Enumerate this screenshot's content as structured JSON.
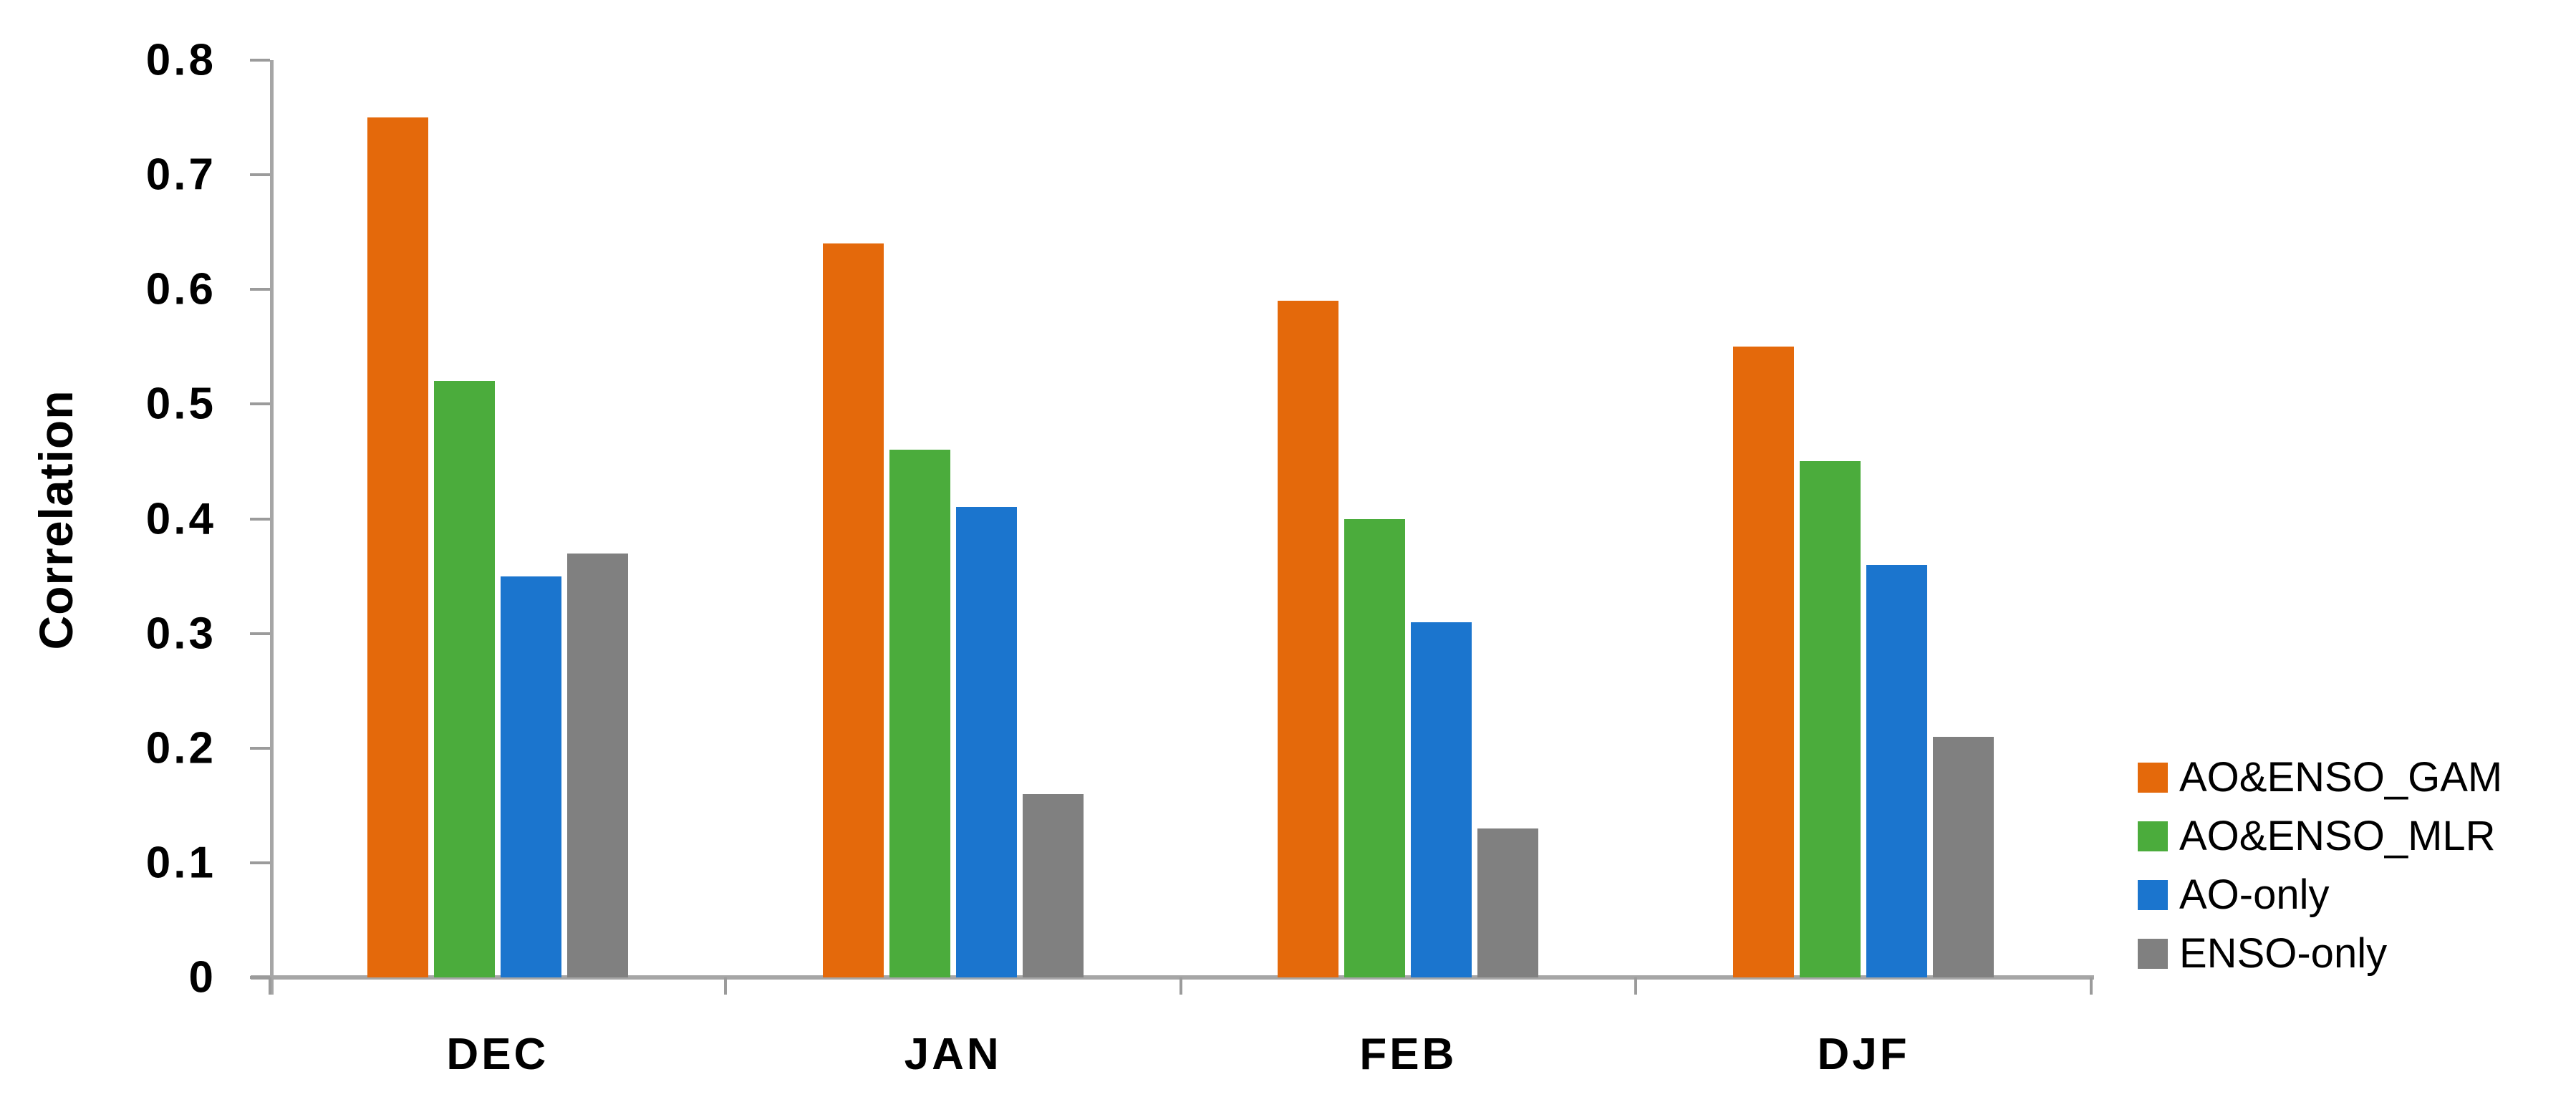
{
  "chart_data": {
    "type": "bar",
    "title": "",
    "xlabel": "",
    "ylabel": "Correlation",
    "categories": [
      "DEC",
      "JAN",
      "FEB",
      "DJF"
    ],
    "series": [
      {
        "name": "AO&ENSO_GAM",
        "color": "#e4690b",
        "values": [
          0.75,
          0.64,
          0.59,
          0.55
        ]
      },
      {
        "name": "AO&ENSO_MLR",
        "color": "#4bac3c",
        "values": [
          0.52,
          0.46,
          0.4,
          0.45
        ]
      },
      {
        "name": "AO-only",
        "color": "#1b75ce",
        "values": [
          0.35,
          0.41,
          0.31,
          0.36
        ]
      },
      {
        "name": "ENSO-only",
        "color": "#808080",
        "values": [
          0.37,
          0.16,
          0.13,
          0.21
        ]
      }
    ],
    "ylim": [
      0,
      0.8
    ],
    "yticks": [
      "0.8",
      "0.7",
      "0.6",
      "0.5",
      "0.4",
      "0.3",
      "0.2",
      "0.1",
      "0"
    ],
    "ytick_values": [
      0.8,
      0.7,
      0.6,
      0.5,
      0.4,
      0.3,
      0.2,
      0.1,
      0
    ],
    "grid": false,
    "legend_position": "right",
    "axis_line_color": "#a6a6a6",
    "tick_color": "#9b9b9b",
    "text_color": "#000000"
  }
}
